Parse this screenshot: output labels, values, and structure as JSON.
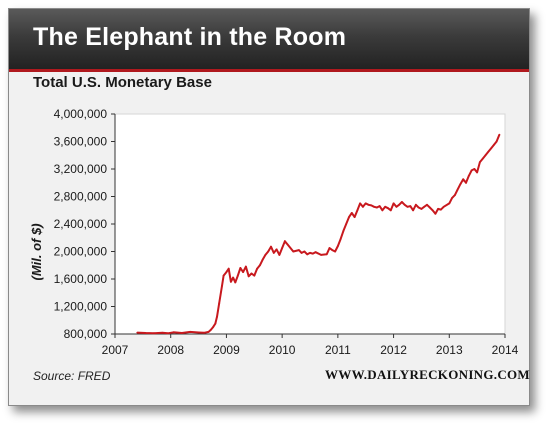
{
  "header": {
    "title": "The Elephant in the Room"
  },
  "footer": {
    "source": "Source: FRED",
    "website": "WWW.DAILYRECKONING.COM"
  },
  "colors": {
    "header_accent": "#b0191e",
    "line": "#c8191e",
    "plot_background": "#ffffff",
    "card_background": "#f1f1f1"
  },
  "chart_data": {
    "type": "line",
    "title": "Total U.S. Monetary Base",
    "xlabel": "",
    "ylabel": "(Mil. of $)",
    "xlim": [
      2007,
      2014
    ],
    "ylim": [
      800000,
      4000000
    ],
    "x_ticks": [
      2007,
      2008,
      2009,
      2010,
      2011,
      2012,
      2013,
      2014
    ],
    "x_tick_labels": [
      "2007",
      "2008",
      "2009",
      "2010",
      "2011",
      "2012",
      "2013",
      "2014"
    ],
    "y_ticks": [
      800000,
      1200000,
      1600000,
      2000000,
      2400000,
      2800000,
      3200000,
      3600000,
      4000000
    ],
    "y_tick_labels": [
      "800,000",
      "1,200,000",
      "1,600,000",
      "2,000,000",
      "2,400,000",
      "2,800,000",
      "3,200,000",
      "3,600,000",
      "4,000,000"
    ],
    "grid": false,
    "legend": "none",
    "series": [
      {
        "x": [
          2007.4,
          2007.55,
          2007.7,
          2007.85,
          2007.95,
          2008.05,
          2008.2,
          2008.35,
          2008.5,
          2008.6,
          2008.68,
          2008.72,
          2008.76,
          2008.8,
          2008.83,
          2008.87,
          2008.92,
          2008.95,
          2009.0,
          2009.04,
          2009.08,
          2009.12,
          2009.16,
          2009.2,
          2009.25,
          2009.3,
          2009.35,
          2009.4,
          2009.45,
          2009.5,
          2009.55,
          2009.6,
          2009.65,
          2009.7,
          2009.75,
          2009.8,
          2009.85,
          2009.9,
          2009.95,
          2010.0,
          2010.05,
          2010.1,
          2010.2,
          2010.3,
          2010.35,
          2010.4,
          2010.45,
          2010.5,
          2010.55,
          2010.6,
          2010.7,
          2010.8,
          2010.85,
          2010.9,
          2010.95,
          2011.0,
          2011.05,
          2011.1,
          2011.15,
          2011.2,
          2011.25,
          2011.3,
          2011.35,
          2011.4,
          2011.45,
          2011.5,
          2011.55,
          2011.6,
          2011.65,
          2011.7,
          2011.75,
          2011.8,
          2011.85,
          2011.9,
          2011.95,
          2012.0,
          2012.05,
          2012.1,
          2012.15,
          2012.2,
          2012.25,
          2012.3,
          2012.35,
          2012.4,
          2012.45,
          2012.5,
          2012.55,
          2012.6,
          2012.65,
          2012.7,
          2012.75,
          2012.8,
          2012.85,
          2012.9,
          2013.0,
          2013.05,
          2013.1,
          2013.15,
          2013.2,
          2013.25,
          2013.3,
          2013.35,
          2013.4,
          2013.45,
          2013.5,
          2013.55,
          2013.6,
          2013.65,
          2013.7,
          2013.75,
          2013.8,
          2013.85,
          2013.9
        ],
        "values": [
          820000,
          815000,
          812000,
          818000,
          810000,
          825000,
          815000,
          830000,
          822000,
          818000,
          830000,
          860000,
          900000,
          950000,
          1050000,
          1250000,
          1500000,
          1650000,
          1700000,
          1750000,
          1560000,
          1620000,
          1550000,
          1640000,
          1760000,
          1700000,
          1780000,
          1640000,
          1680000,
          1650000,
          1750000,
          1800000,
          1880000,
          1950000,
          2000000,
          2070000,
          1980000,
          2030000,
          1950000,
          2050000,
          2150000,
          2100000,
          2000000,
          2020000,
          1980000,
          2000000,
          1960000,
          1980000,
          1970000,
          1990000,
          1950000,
          1960000,
          2050000,
          2020000,
          2000000,
          2080000,
          2180000,
          2300000,
          2400000,
          2500000,
          2560000,
          2500000,
          2600000,
          2700000,
          2650000,
          2700000,
          2680000,
          2670000,
          2650000,
          2640000,
          2660000,
          2600000,
          2650000,
          2630000,
          2600000,
          2700000,
          2650000,
          2680000,
          2720000,
          2680000,
          2650000,
          2660000,
          2600000,
          2680000,
          2640000,
          2620000,
          2650000,
          2680000,
          2640000,
          2600000,
          2550000,
          2620000,
          2610000,
          2650000,
          2700000,
          2780000,
          2820000,
          2900000,
          2980000,
          3050000,
          3000000,
          3100000,
          3180000,
          3200000,
          3150000,
          3300000,
          3350000,
          3400000,
          3450000,
          3500000,
          3550000,
          3600000,
          3700000
        ]
      }
    ]
  }
}
